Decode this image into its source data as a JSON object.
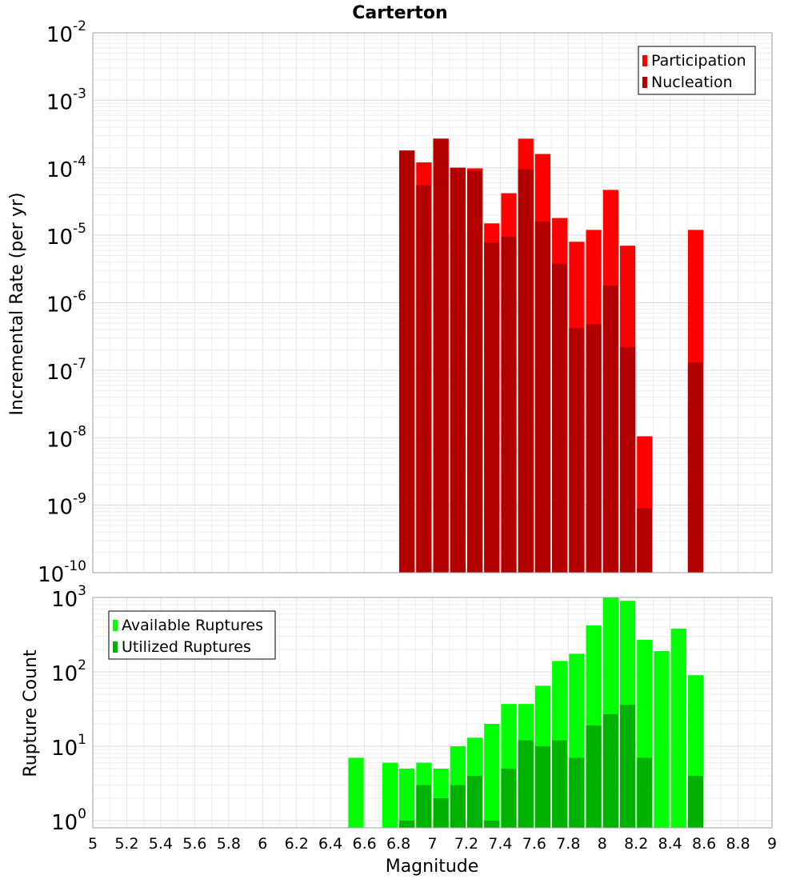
{
  "title": "Carterton",
  "xlabel": "Magnitude",
  "chart_data": [
    {
      "type": "bar",
      "title": "Carterton",
      "ylabel": "Incremental Rate (per yr)",
      "yscale": "log",
      "ylim": [
        1e-10,
        0.01
      ],
      "xlim": [
        5,
        9
      ],
      "grid": true,
      "legend_position": "top-right",
      "bin_width": 0.1,
      "x": [
        6.85,
        6.95,
        7.05,
        7.15,
        7.25,
        7.35,
        7.45,
        7.55,
        7.65,
        7.75,
        7.85,
        7.95,
        8.05,
        8.15,
        8.25,
        8.55
      ],
      "series": [
        {
          "name": "Participation",
          "color": "#ff0000",
          "values": [
            0.00018,
            0.00012,
            0.00027,
            0.0001,
            9.8e-05,
            1.5e-05,
            4.2e-05,
            0.00027,
            0.00016,
            1.8e-05,
            8e-06,
            1.2e-05,
            4.7e-05,
            7e-06,
            1.05e-08,
            1.2e-05
          ]
        },
        {
          "name": "Nucleation",
          "color": "#b20000",
          "values": [
            0.00018,
            5.5e-05,
            0.00027,
            0.0001,
            9e-05,
            7.8e-06,
            9.5e-06,
            9.5e-05,
            1.6e-05,
            3.8e-06,
            4.2e-07,
            4.8e-07,
            1.8e-06,
            2.2e-07,
            9e-10,
            1.3e-07
          ]
        }
      ]
    },
    {
      "type": "bar",
      "ylabel": "Rupture Count",
      "yscale": "log",
      "ylim": [
        0.8,
        1000
      ],
      "xlim": [
        5,
        9
      ],
      "grid": true,
      "legend_position": "top-left",
      "bin_width": 0.1,
      "x": [
        6.55,
        6.75,
        6.85,
        6.95,
        7.05,
        7.15,
        7.25,
        7.35,
        7.45,
        7.55,
        7.65,
        7.75,
        7.85,
        7.95,
        8.05,
        8.15,
        8.25,
        8.35,
        8.45,
        8.55
      ],
      "series": [
        {
          "name": "Available Ruptures",
          "color": "#00ff00",
          "values": [
            7,
            6,
            5,
            6,
            5,
            10,
            13,
            20,
            37,
            37,
            65,
            140,
            175,
            420,
            1000,
            900,
            270,
            190,
            380,
            90
          ]
        },
        {
          "name": "Utilized Ruptures",
          "color": "#00b200",
          "values": [
            null,
            null,
            1,
            3,
            2,
            3,
            4,
            1,
            5,
            12,
            10,
            12,
            7,
            19,
            27,
            36,
            7,
            null,
            null,
            4
          ]
        }
      ]
    }
  ],
  "top_y_ticks": [
    {
      "base": "10",
      "exp": "-2",
      "value": 0.01
    },
    {
      "base": "10",
      "exp": "-3",
      "value": 0.001
    },
    {
      "base": "10",
      "exp": "-4",
      "value": 0.0001
    },
    {
      "base": "10",
      "exp": "-5",
      "value": 1e-05
    },
    {
      "base": "10",
      "exp": "-6",
      "value": 1e-06
    },
    {
      "base": "10",
      "exp": "-7",
      "value": 1e-07
    },
    {
      "base": "10",
      "exp": "-8",
      "value": 1e-08
    },
    {
      "base": "10",
      "exp": "-9",
      "value": 1e-09
    },
    {
      "base": "10",
      "exp": "-10",
      "value": 1e-10
    }
  ],
  "bottom_y_ticks": [
    {
      "base": "10",
      "exp": "3",
      "value": 1000
    },
    {
      "base": "10",
      "exp": "2",
      "value": 100
    },
    {
      "base": "10",
      "exp": "1",
      "value": 10
    },
    {
      "base": "10",
      "exp": "0",
      "value": 1
    }
  ],
  "x_ticks": [
    "5",
    "5.2",
    "5.4",
    "5.6",
    "5.8",
    "6",
    "6.2",
    "6.4",
    "6.6",
    "6.8",
    "7",
    "7.2",
    "7.4",
    "7.6",
    "7.8",
    "8",
    "8.2",
    "8.4",
    "8.6",
    "8.8",
    "9"
  ]
}
